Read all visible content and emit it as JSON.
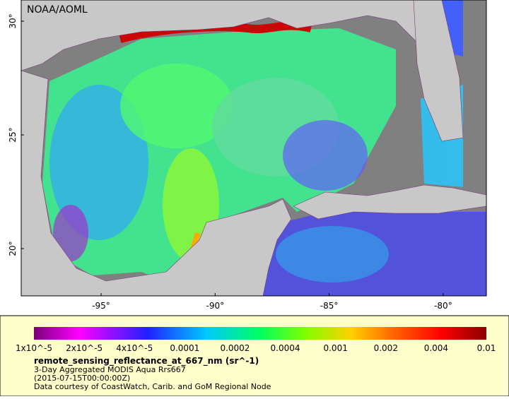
{
  "map": {
    "watermark": "NOAA/AOML",
    "lat_ticks": [
      "30°",
      "25°",
      "20°"
    ],
    "lon_ticks": [
      "-95°",
      "-90°",
      "-85°",
      "-80°"
    ]
  },
  "legend": {
    "colorbar_labels": [
      "1x10^-5",
      "2x10^-5",
      "4x10^-5",
      "0.0001",
      "0.0002",
      "0.0004",
      "0.001",
      "0.002",
      "0.004",
      "0.01"
    ],
    "variable": "remote_sensing_reflectance_at_667_nm (sr^-1)",
    "lines": [
      "3-Day Aggregated MODIS Aqua Rrs667",
      "(2015-07-15T00:00:00Z)",
      "Data courtesy of CoastWatch, Carib. and GoM Regional Node"
    ]
  }
}
